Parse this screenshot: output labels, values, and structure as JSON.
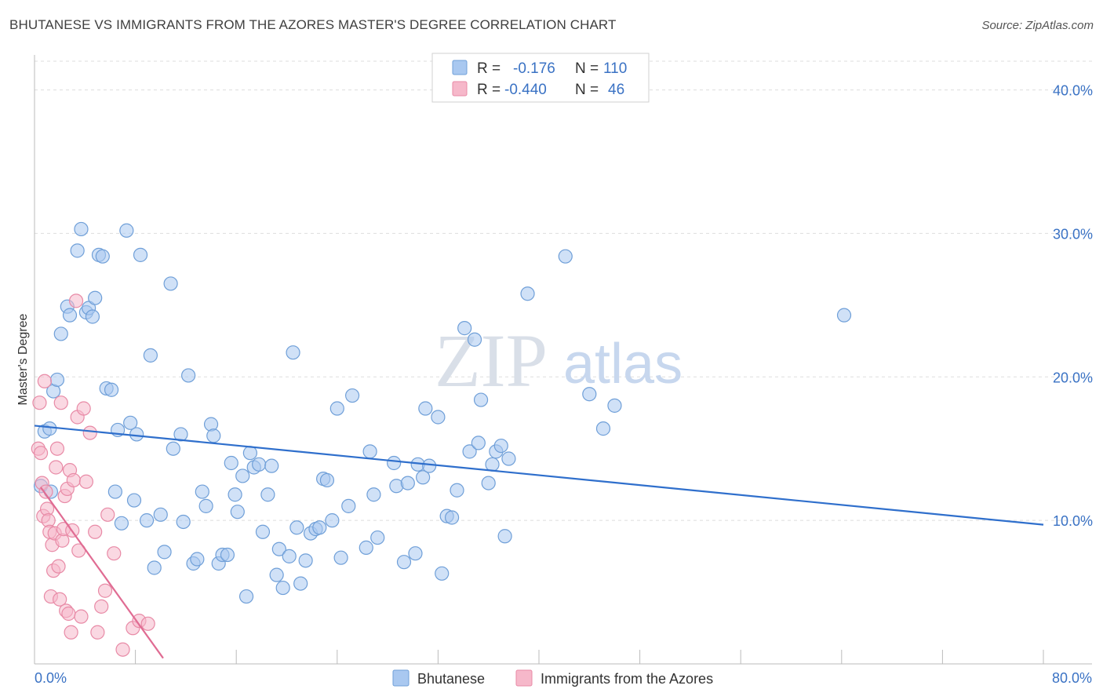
{
  "header": {
    "title": "BHUTANESE VS IMMIGRANTS FROM THE AZORES MASTER'S DEGREE CORRELATION CHART",
    "source": "Source: ZipAtlas.com"
  },
  "watermark": {
    "zip": "ZIP",
    "atlas": "atlas"
  },
  "colors": {
    "blue_fill": "#a9c8f0",
    "blue_stroke": "#6f9fd8",
    "blue_line": "#2f6fcc",
    "pink_fill": "#f6b8ca",
    "pink_stroke": "#e88aa6",
    "pink_line": "#e06c93",
    "tick_text": "#3a72c4",
    "grid": "#dddddd"
  },
  "legend": {
    "rows": [
      {
        "r_label": "R =",
        "r_value": "-0.176",
        "n_label": "N =",
        "n_value": "110"
      },
      {
        "r_label": "R =",
        "r_value": "-0.440",
        "n_label": "N =",
        "n_value": "46"
      }
    ]
  },
  "chart_data": {
    "type": "scatter",
    "title": "BHUTANESE VS IMMIGRANTS FROM THE AZORES MASTER'S DEGREE CORRELATION CHART",
    "ylabel": "Master's Degree",
    "xlabel": "",
    "xlim": [
      0,
      80
    ],
    "ylim": [
      0,
      42
    ],
    "x_tick_labels": [
      "0.0%",
      "80.0%"
    ],
    "y_ticks": [
      10,
      20,
      30,
      40
    ],
    "y_tick_labels": [
      "10.0%",
      "20.0%",
      "30.0%",
      "40.0%"
    ],
    "series": [
      {
        "name": "Bhutanese",
        "color": "#a9c8f0",
        "trend": {
          "x": [
            0,
            80
          ],
          "y": [
            16.6,
            9.7
          ]
        },
        "points": [
          [
            0.5,
            12.4
          ],
          [
            0.8,
            16.2
          ],
          [
            1.2,
            16.4
          ],
          [
            1.3,
            12.0
          ],
          [
            1.5,
            19.0
          ],
          [
            1.8,
            19.8
          ],
          [
            2.1,
            23.0
          ],
          [
            2.6,
            24.9
          ],
          [
            2.8,
            24.3
          ],
          [
            3.4,
            28.8
          ],
          [
            3.7,
            30.3
          ],
          [
            4.1,
            24.5
          ],
          [
            4.3,
            24.8
          ],
          [
            4.6,
            24.2
          ],
          [
            4.8,
            25.5
          ],
          [
            5.1,
            28.5
          ],
          [
            5.4,
            28.4
          ],
          [
            5.7,
            19.2
          ],
          [
            6.1,
            19.1
          ],
          [
            6.4,
            12.0
          ],
          [
            6.6,
            16.3
          ],
          [
            6.9,
            9.8
          ],
          [
            7.3,
            30.2
          ],
          [
            7.6,
            16.8
          ],
          [
            7.9,
            11.4
          ],
          [
            8.1,
            16.0
          ],
          [
            8.4,
            28.5
          ],
          [
            8.9,
            10.0
          ],
          [
            9.2,
            21.5
          ],
          [
            9.5,
            6.7
          ],
          [
            10.0,
            10.4
          ],
          [
            10.3,
            7.8
          ],
          [
            10.8,
            26.5
          ],
          [
            11.0,
            15.0
          ],
          [
            11.6,
            16.0
          ],
          [
            11.8,
            9.9
          ],
          [
            12.2,
            20.1
          ],
          [
            12.6,
            7.0
          ],
          [
            12.9,
            7.3
          ],
          [
            13.3,
            12.0
          ],
          [
            13.6,
            11.0
          ],
          [
            14.0,
            16.7
          ],
          [
            14.2,
            15.9
          ],
          [
            14.6,
            7.0
          ],
          [
            14.9,
            7.6
          ],
          [
            15.3,
            7.6
          ],
          [
            15.6,
            14.0
          ],
          [
            15.9,
            11.8
          ],
          [
            16.1,
            10.6
          ],
          [
            16.5,
            13.1
          ],
          [
            16.8,
            4.7
          ],
          [
            17.1,
            14.7
          ],
          [
            17.4,
            13.7
          ],
          [
            17.8,
            13.9
          ],
          [
            18.1,
            9.2
          ],
          [
            18.5,
            11.8
          ],
          [
            18.8,
            13.8
          ],
          [
            19.2,
            6.2
          ],
          [
            19.4,
            8.0
          ],
          [
            19.7,
            5.3
          ],
          [
            20.2,
            7.5
          ],
          [
            20.5,
            21.7
          ],
          [
            20.8,
            9.5
          ],
          [
            21.1,
            5.6
          ],
          [
            21.5,
            7.2
          ],
          [
            21.9,
            9.1
          ],
          [
            22.3,
            9.4
          ],
          [
            22.6,
            9.5
          ],
          [
            22.9,
            12.9
          ],
          [
            23.2,
            12.8
          ],
          [
            23.6,
            10.0
          ],
          [
            24.0,
            17.8
          ],
          [
            24.3,
            7.4
          ],
          [
            24.9,
            11.0
          ],
          [
            25.2,
            18.7
          ],
          [
            26.3,
            8.1
          ],
          [
            26.6,
            14.8
          ],
          [
            26.9,
            11.8
          ],
          [
            27.2,
            8.8
          ],
          [
            28.5,
            14.0
          ],
          [
            28.7,
            12.4
          ],
          [
            29.3,
            7.1
          ],
          [
            29.6,
            12.6
          ],
          [
            30.2,
            7.7
          ],
          [
            30.8,
            13.0
          ],
          [
            30.4,
            13.9
          ],
          [
            31.0,
            17.8
          ],
          [
            31.3,
            13.8
          ],
          [
            32.0,
            17.2
          ],
          [
            32.3,
            6.3
          ],
          [
            32.7,
            10.3
          ],
          [
            33.1,
            10.2
          ],
          [
            33.5,
            12.1
          ],
          [
            34.1,
            23.4
          ],
          [
            34.5,
            14.8
          ],
          [
            34.9,
            22.6
          ],
          [
            35.2,
            15.4
          ],
          [
            35.4,
            18.4
          ],
          [
            36.0,
            12.6
          ],
          [
            36.3,
            13.9
          ],
          [
            36.6,
            14.8
          ],
          [
            37.0,
            15.2
          ],
          [
            37.3,
            8.9
          ],
          [
            37.6,
            14.3
          ],
          [
            39.1,
            25.8
          ],
          [
            42.1,
            28.4
          ],
          [
            44.0,
            18.8
          ],
          [
            45.1,
            16.4
          ],
          [
            46.0,
            18.0
          ],
          [
            64.2,
            24.3
          ]
        ]
      },
      {
        "name": "Immigrants from the Azores",
        "color": "#f6b8ca",
        "trend": {
          "x": [
            0.5,
            10.2
          ],
          "y": [
            12.3,
            0.4
          ]
        },
        "points": [
          [
            0.3,
            15.0
          ],
          [
            0.4,
            18.2
          ],
          [
            0.5,
            14.7
          ],
          [
            0.6,
            12.6
          ],
          [
            0.7,
            10.3
          ],
          [
            0.8,
            19.7
          ],
          [
            0.9,
            12.0
          ],
          [
            1.0,
            10.8
          ],
          [
            1.1,
            10.0
          ],
          [
            1.2,
            9.2
          ],
          [
            1.3,
            4.7
          ],
          [
            1.4,
            8.3
          ],
          [
            1.5,
            6.5
          ],
          [
            1.6,
            9.1
          ],
          [
            1.7,
            13.7
          ],
          [
            1.8,
            15.0
          ],
          [
            1.9,
            6.8
          ],
          [
            2.0,
            4.5
          ],
          [
            2.1,
            18.2
          ],
          [
            2.2,
            8.6
          ],
          [
            2.3,
            9.4
          ],
          [
            2.4,
            11.7
          ],
          [
            2.5,
            3.7
          ],
          [
            2.6,
            12.2
          ],
          [
            2.7,
            3.5
          ],
          [
            2.8,
            13.5
          ],
          [
            2.9,
            2.2
          ],
          [
            3.0,
            9.3
          ],
          [
            3.1,
            12.8
          ],
          [
            3.3,
            25.3
          ],
          [
            3.4,
            17.2
          ],
          [
            3.5,
            7.9
          ],
          [
            3.7,
            3.3
          ],
          [
            3.9,
            17.8
          ],
          [
            4.1,
            12.7
          ],
          [
            4.4,
            16.1
          ],
          [
            4.8,
            9.2
          ],
          [
            5.0,
            2.2
          ],
          [
            5.3,
            4.0
          ],
          [
            5.6,
            5.1
          ],
          [
            5.8,
            10.4
          ],
          [
            6.3,
            7.7
          ],
          [
            7.0,
            1.0
          ],
          [
            7.8,
            2.5
          ],
          [
            8.3,
            3.0
          ],
          [
            9.0,
            2.8
          ]
        ]
      }
    ],
    "legend_bottom": [
      "Bhutanese",
      "Immigrants from the Azores"
    ]
  }
}
